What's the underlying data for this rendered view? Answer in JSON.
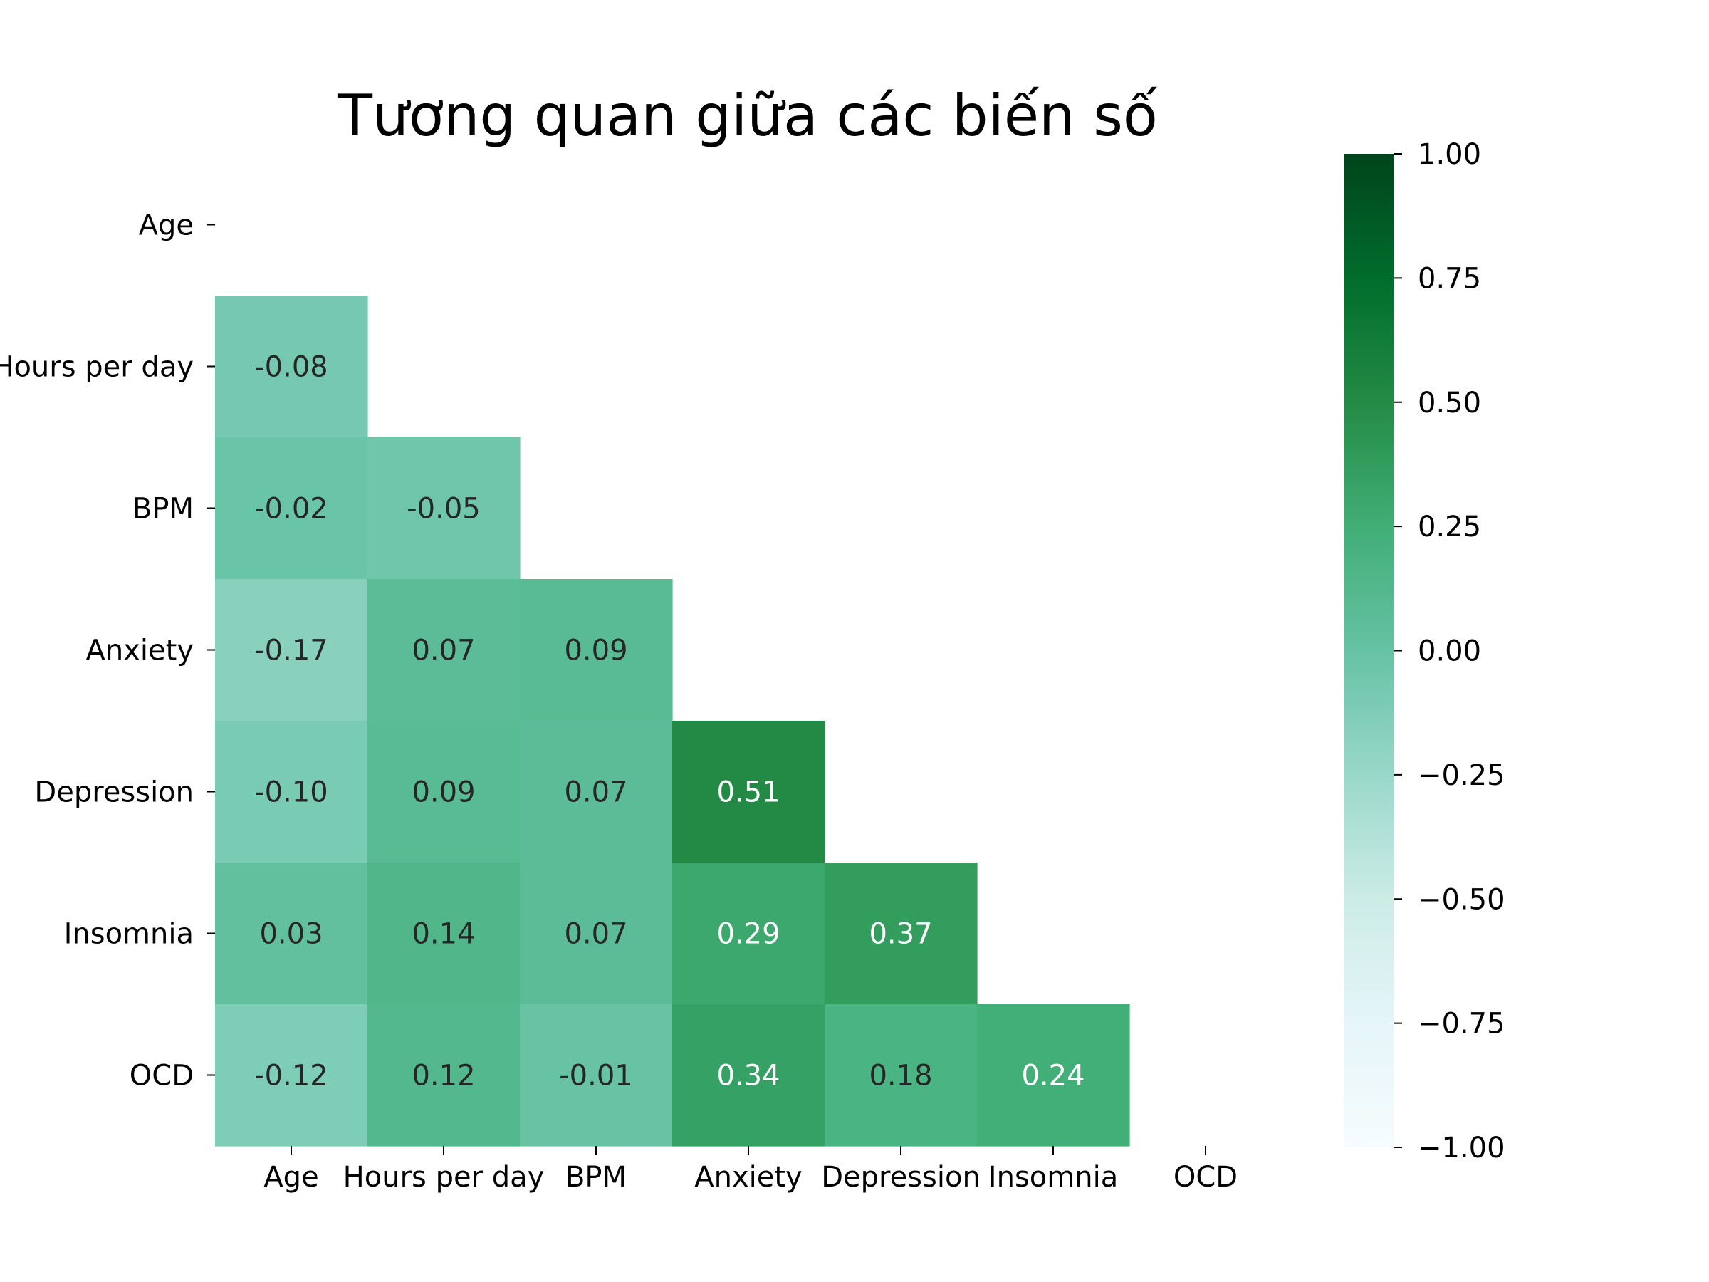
{
  "chart_data": {
    "type": "heatmap",
    "title": "Tương quan giữa các biến số",
    "variables": [
      "Age",
      "Hours per day",
      "BPM",
      "Anxiety",
      "Depression",
      "Insomnia",
      "OCD"
    ],
    "mask": "upper-triangle-including-diagonal",
    "matrix": [
      [
        null,
        null,
        null,
        null,
        null,
        null,
        null
      ],
      [
        -0.08,
        null,
        null,
        null,
        null,
        null,
        null
      ],
      [
        -0.02,
        -0.05,
        null,
        null,
        null,
        null,
        null
      ],
      [
        -0.17,
        0.07,
        0.09,
        null,
        null,
        null,
        null
      ],
      [
        -0.1,
        0.09,
        0.07,
        0.51,
        null,
        null,
        null
      ],
      [
        0.03,
        0.14,
        0.07,
        0.29,
        0.37,
        null,
        null
      ],
      [
        -0.12,
        0.12,
        -0.01,
        0.34,
        0.18,
        0.24,
        null
      ]
    ],
    "value_format": "2 decimals",
    "colormap": "BuGn",
    "colormap_colors": [
      "#f7fcfd",
      "#e5f5f9",
      "#ccece6",
      "#99d8c9",
      "#66c2a4",
      "#41ae76",
      "#238b45",
      "#006d2c",
      "#00441b"
    ],
    "vmin": -1.0,
    "vmax": 1.0,
    "colorbar": {
      "ticks": [
        1.0,
        0.75,
        0.5,
        0.25,
        0.0,
        -0.25,
        -0.5,
        -0.75,
        -1.0
      ],
      "tick_labels": [
        "1.00",
        "0.75",
        "0.50",
        "0.25",
        "0.00",
        "−0.25",
        "−0.50",
        "−0.75",
        "−1.00"
      ]
    },
    "annotation_colors": {
      "dark": "#262626",
      "light": "#ffffff"
    }
  }
}
